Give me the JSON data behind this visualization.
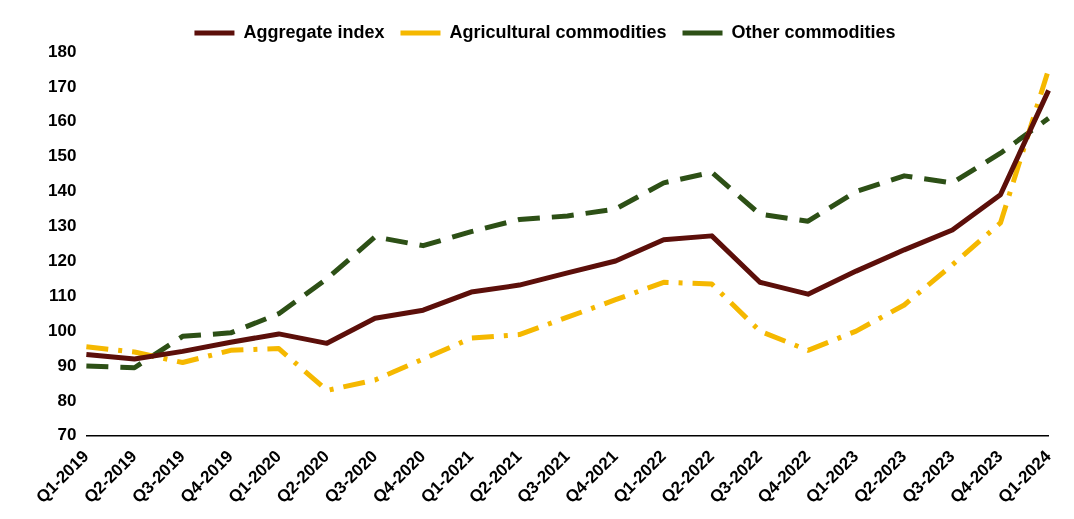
{
  "chart_data": {
    "type": "line",
    "categories": [
      "Q1-2019",
      "Q2-2019",
      "Q3-2019",
      "Q4-2019",
      "Q1-2020",
      "Q2-2020",
      "Q3-2020",
      "Q4-2020",
      "Q1-2021",
      "Q2-2021",
      "Q3-2021",
      "Q4-2021",
      "Q1-2022",
      "Q2-2022",
      "Q3-2022",
      "Q4-2022",
      "Q1-2023",
      "Q2-2023",
      "Q3-2023",
      "Q4-2023",
      "Q1-2024"
    ],
    "series": [
      {
        "name": "Aggregate index",
        "color": "#5c0f0a",
        "line_style": "solid",
        "values": [
          93.3,
          92,
          94.2,
          96.8,
          99.2,
          96.5,
          103.7,
          106,
          111.2,
          113.2,
          116.7,
          120.1,
          126.2,
          127.3,
          114,
          110.6,
          117.2,
          123.3,
          129,
          139.1,
          169
        ]
      },
      {
        "name": "Agricultural commodities",
        "color": "#f5b800",
        "line_style": "dashdot",
        "values": [
          95.5,
          94,
          91,
          94.5,
          95,
          83,
          86,
          92,
          98,
          99,
          104,
          109,
          114,
          113.5,
          100,
          94.5,
          100,
          107.5,
          119,
          131,
          175
        ]
      },
      {
        "name": "Other commodities",
        "color": "#2d5016",
        "line_style": "dashed",
        "values": [
          90,
          89.5,
          98.5,
          99.5,
          105,
          115,
          127,
          124.5,
          128.5,
          132,
          133,
          135,
          142.5,
          145.5,
          133.5,
          131.5,
          140,
          144.5,
          142.5,
          151,
          161
        ]
      }
    ],
    "ylim": [
      70,
      180
    ],
    "yticks": [
      70,
      80,
      90,
      100,
      110,
      120,
      130,
      140,
      150,
      160,
      170,
      180
    ],
    "grid": false,
    "legend": "top",
    "marker": "none"
  }
}
